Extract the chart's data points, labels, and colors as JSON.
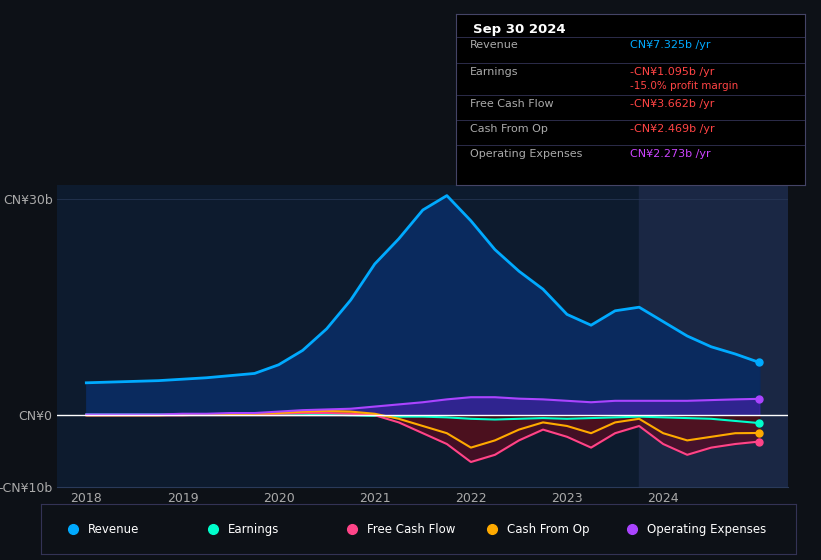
{
  "bg_color": "#0d1117",
  "plot_bg_color": "#0d1b2e",
  "highlight_bg_color": "#1a2744",
  "grid_color": "#2a3a5a",
  "zero_line_color": "#ffffff",
  "ylim": [
    -10,
    32
  ],
  "yticks": [
    -10,
    0,
    30
  ],
  "ytick_labels": [
    "-CN¥10b",
    "CN¥0",
    "CN¥30b"
  ],
  "xlim_start": 2017.7,
  "xlim_end": 2025.3,
  "xticks": [
    2018,
    2019,
    2020,
    2021,
    2022,
    2023,
    2024
  ],
  "legend_items": [
    {
      "label": "Revenue",
      "color": "#00aaff"
    },
    {
      "label": "Earnings",
      "color": "#00ffcc"
    },
    {
      "label": "Free Cash Flow",
      "color": "#ff4488"
    },
    {
      "label": "Cash From Op",
      "color": "#ffaa00"
    },
    {
      "label": "Operating Expenses",
      "color": "#aa44ff"
    }
  ],
  "series": {
    "x": [
      2018.0,
      2018.25,
      2018.5,
      2018.75,
      2019.0,
      2019.25,
      2019.5,
      2019.75,
      2020.0,
      2020.25,
      2020.5,
      2020.75,
      2021.0,
      2021.25,
      2021.5,
      2021.75,
      2022.0,
      2022.25,
      2022.5,
      2022.75,
      2023.0,
      2023.25,
      2023.5,
      2023.75,
      2024.0,
      2024.25,
      2024.5,
      2024.75,
      2025.0
    ],
    "Revenue": [
      4.5,
      4.6,
      4.7,
      4.8,
      5.0,
      5.2,
      5.5,
      5.8,
      7.0,
      9.0,
      12.0,
      16.0,
      21.0,
      24.5,
      28.5,
      30.5,
      27.0,
      23.0,
      20.0,
      17.5,
      14.0,
      12.5,
      14.5,
      15.0,
      13.0,
      11.0,
      9.5,
      8.5,
      7.325
    ],
    "Earnings": [
      0.1,
      0.1,
      0.1,
      0.1,
      0.1,
      0.1,
      0.1,
      0.1,
      0.2,
      0.2,
      0.1,
      0.0,
      -0.1,
      -0.2,
      -0.2,
      -0.3,
      -0.5,
      -0.6,
      -0.5,
      -0.4,
      -0.5,
      -0.4,
      -0.3,
      -0.2,
      -0.3,
      -0.4,
      -0.5,
      -0.8,
      -1.095
    ],
    "Free_Cash_Flow": [
      0.0,
      0.0,
      0.0,
      0.0,
      0.0,
      0.1,
      0.1,
      0.1,
      0.2,
      0.3,
      0.3,
      0.2,
      0.0,
      -1.0,
      -2.5,
      -4.0,
      -6.5,
      -5.5,
      -3.5,
      -2.0,
      -3.0,
      -4.5,
      -2.5,
      -1.5,
      -4.0,
      -5.5,
      -4.5,
      -4.0,
      -3.662
    ],
    "Cash_From_Op": [
      0.0,
      0.0,
      0.0,
      0.0,
      0.1,
      0.1,
      0.1,
      0.2,
      0.3,
      0.5,
      0.6,
      0.5,
      0.2,
      -0.5,
      -1.5,
      -2.5,
      -4.5,
      -3.5,
      -2.0,
      -1.0,
      -1.5,
      -2.5,
      -1.0,
      -0.5,
      -2.5,
      -3.5,
      -3.0,
      -2.5,
      -2.469
    ],
    "Operating_Expenses": [
      0.1,
      0.1,
      0.1,
      0.1,
      0.2,
      0.2,
      0.3,
      0.3,
      0.5,
      0.7,
      0.8,
      0.9,
      1.2,
      1.5,
      1.8,
      2.2,
      2.5,
      2.5,
      2.3,
      2.2,
      2.0,
      1.8,
      2.0,
      2.0,
      2.0,
      2.0,
      2.1,
      2.2,
      2.273
    ]
  },
  "highlight_x_start": 2023.75,
  "tooltip_rows": [
    {
      "label": "Revenue",
      "value": "CN¥7.325b /yr",
      "vcolor": "#00aaff",
      "sub": null,
      "scolor": null
    },
    {
      "label": "Earnings",
      "value": "-CN¥1.095b /yr",
      "vcolor": "#ff4444",
      "sub": "-15.0% profit margin",
      "scolor": "#ff4444"
    },
    {
      "label": "Free Cash Flow",
      "value": "-CN¥3.662b /yr",
      "vcolor": "#ff4444",
      "sub": null,
      "scolor": null
    },
    {
      "label": "Cash From Op",
      "value": "-CN¥2.469b /yr",
      "vcolor": "#ff4444",
      "sub": null,
      "scolor": null
    },
    {
      "label": "Operating Expenses",
      "value": "CN¥2.273b /yr",
      "vcolor": "#cc44ff",
      "sub": null,
      "scolor": null
    }
  ]
}
